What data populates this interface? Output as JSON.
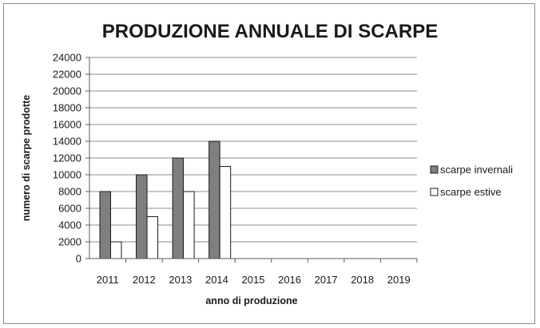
{
  "chart_data": {
    "type": "bar",
    "title": "PRODUZIONE ANNUALE DI SCARPE",
    "xlabel": "anno di produzione",
    "ylabel": "numero di scarpe prodotte",
    "categories": [
      "2011",
      "2012",
      "2013",
      "2014",
      "2015",
      "2016",
      "2017",
      "2018",
      "2019"
    ],
    "series": [
      {
        "name": "scarpe invernali",
        "values": [
          8000,
          10000,
          12000,
          14000,
          null,
          null,
          null,
          null,
          null
        ],
        "color": "#7f7f7f"
      },
      {
        "name": "scarpe estive",
        "values": [
          2000,
          5000,
          8000,
          11000,
          null,
          null,
          null,
          null,
          null
        ],
        "color": "#ffffff"
      }
    ],
    "ylim": [
      0,
      24000
    ],
    "yticks": [
      "0",
      "2000",
      "4000",
      "6000",
      "8000",
      "10000",
      "12000",
      "14000",
      "16000",
      "18000",
      "20000",
      "22000",
      "24000"
    ],
    "grid": true,
    "legend": "right"
  }
}
